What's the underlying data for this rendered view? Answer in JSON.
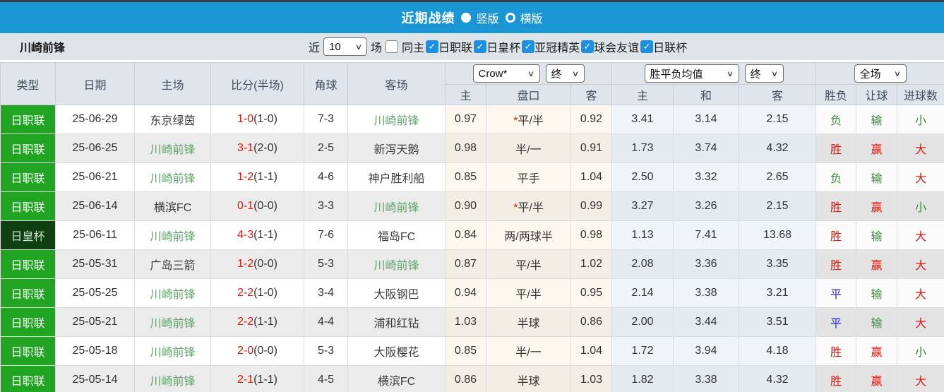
{
  "colors": {
    "accent_blue": "#1b96d5",
    "checkbox_blue": "#1e90e4",
    "league_green": "#21a421",
    "cup_dark_green": "#0e4012",
    "team_highlight_green": "#5da268",
    "score_red": "#e8160c",
    "win_red": "#e8160c",
    "draw_blue": "#2929d8",
    "lose_green": "#3d8b3d",
    "odds_section_bg": "#fdf8ef",
    "mean_section_bg": "#eef4f8"
  },
  "titlebar": {
    "title": "近期战绩",
    "options": [
      {
        "label": "竖版",
        "selected": true
      },
      {
        "label": "横版",
        "selected": false
      }
    ]
  },
  "toolbar": {
    "team": "川崎前锋",
    "near_label": "近",
    "count_value": "10",
    "games_label": "场",
    "same_home_label": "同主",
    "same_home_checked": false,
    "filters": [
      {
        "label": "日职联",
        "checked": true
      },
      {
        "label": "日皇杯",
        "checked": true
      },
      {
        "label": "亚冠精英",
        "checked": true
      },
      {
        "label": "球会友谊",
        "checked": true
      },
      {
        "label": "日联杯",
        "checked": true
      }
    ]
  },
  "table": {
    "selects": {
      "bookmaker": "Crow*",
      "odds_time": "终",
      "mean": "胜平负均值",
      "mean_time": "终",
      "scope": "全场"
    },
    "headers": {
      "type": "类型",
      "date": "日期",
      "home": "主场",
      "score": "比分(半场)",
      "corner": "角球",
      "away": "客场",
      "odds_home": "主",
      "odds_line": "盘口",
      "odds_away": "客",
      "mean_home": "主",
      "mean_draw": "和",
      "mean_away": "客",
      "result": "胜负",
      "handicap": "让球",
      "goals": "进球数"
    },
    "rows": [
      {
        "league": "日职联",
        "date": "25-06-29",
        "home": "东京绿茵",
        "score": "1-0",
        "half": "(1-0)",
        "corner": "7-3",
        "away": "川崎前锋",
        "odds_home": "0.97",
        "line": "*平/半",
        "odds_away": "0.92",
        "mean_home": "3.41",
        "mean_draw": "3.14",
        "mean_away": "2.15",
        "result": "负",
        "handicap": "输",
        "goals": "小"
      },
      {
        "league": "日职联",
        "date": "25-06-25",
        "home": "川崎前锋",
        "score": "3-1",
        "half": "(2-0)",
        "corner": "2-5",
        "away": "新泻天鹅",
        "odds_home": "0.98",
        "line": "半/一",
        "odds_away": "0.91",
        "mean_home": "1.73",
        "mean_draw": "3.74",
        "mean_away": "4.32",
        "result": "胜",
        "handicap": "赢",
        "goals": "大"
      },
      {
        "league": "日职联",
        "date": "25-06-21",
        "home": "川崎前锋",
        "score": "1-2",
        "half": "(1-1)",
        "corner": "4-6",
        "away": "神户胜利船",
        "odds_home": "0.85",
        "line": "平手",
        "odds_away": "1.04",
        "mean_home": "2.50",
        "mean_draw": "3.32",
        "mean_away": "2.65",
        "result": "负",
        "handicap": "输",
        "goals": "大"
      },
      {
        "league": "日职联",
        "date": "25-06-14",
        "home": "横滨FC",
        "score": "0-1",
        "half": "(0-0)",
        "corner": "3-3",
        "away": "川崎前锋",
        "odds_home": "0.90",
        "line": "*平/半",
        "odds_away": "0.99",
        "mean_home": "3.27",
        "mean_draw": "3.26",
        "mean_away": "2.15",
        "result": "胜",
        "handicap": "赢",
        "goals": "小"
      },
      {
        "league": "日皇杯",
        "date": "25-06-11",
        "home": "川崎前锋",
        "score": "4-3",
        "half": "(1-1)",
        "corner": "7-6",
        "away": "福岛FC",
        "odds_home": "0.84",
        "line": "两/两球半",
        "odds_away": "0.98",
        "mean_home": "1.13",
        "mean_draw": "7.41",
        "mean_away": "13.68",
        "result": "胜",
        "handicap": "输",
        "goals": "大"
      },
      {
        "league": "日职联",
        "date": "25-05-31",
        "home": "广岛三箭",
        "score": "1-2",
        "half": "(0-0)",
        "corner": "5-3",
        "away": "川崎前锋",
        "odds_home": "0.87",
        "line": "平/半",
        "odds_away": "1.02",
        "mean_home": "2.08",
        "mean_draw": "3.36",
        "mean_away": "3.35",
        "result": "胜",
        "handicap": "赢",
        "goals": "大"
      },
      {
        "league": "日职联",
        "date": "25-05-25",
        "home": "川崎前锋",
        "score": "2-2",
        "half": "(1-0)",
        "corner": "3-4",
        "away": "大阪钢巴",
        "odds_home": "0.94",
        "line": "平/半",
        "odds_away": "0.95",
        "mean_home": "2.14",
        "mean_draw": "3.38",
        "mean_away": "3.21",
        "result": "平",
        "handicap": "输",
        "goals": "大"
      },
      {
        "league": "日职联",
        "date": "25-05-21",
        "home": "川崎前锋",
        "score": "2-2",
        "half": "(1-1)",
        "corner": "4-4",
        "away": "浦和红钻",
        "odds_home": "1.03",
        "line": "半球",
        "odds_away": "0.86",
        "mean_home": "2.00",
        "mean_draw": "3.44",
        "mean_away": "3.51",
        "result": "平",
        "handicap": "输",
        "goals": "大"
      },
      {
        "league": "日职联",
        "date": "25-05-18",
        "home": "川崎前锋",
        "score": "2-0",
        "half": "(0-0)",
        "corner": "5-3",
        "away": "大阪樱花",
        "odds_home": "0.85",
        "line": "半/一",
        "odds_away": "1.04",
        "mean_home": "1.72",
        "mean_draw": "3.94",
        "mean_away": "4.18",
        "result": "胜",
        "handicap": "赢",
        "goals": "小"
      },
      {
        "league": "日职联",
        "date": "25-05-14",
        "home": "川崎前锋",
        "score": "2-1",
        "half": "(1-1)",
        "corner": "4-5",
        "away": "横滨FC",
        "odds_home": "0.86",
        "line": "半球",
        "odds_away": "1.03",
        "mean_home": "1.82",
        "mean_draw": "3.38",
        "mean_away": "4.32",
        "result": "胜",
        "handicap": "赢",
        "goals": "大"
      }
    ]
  }
}
